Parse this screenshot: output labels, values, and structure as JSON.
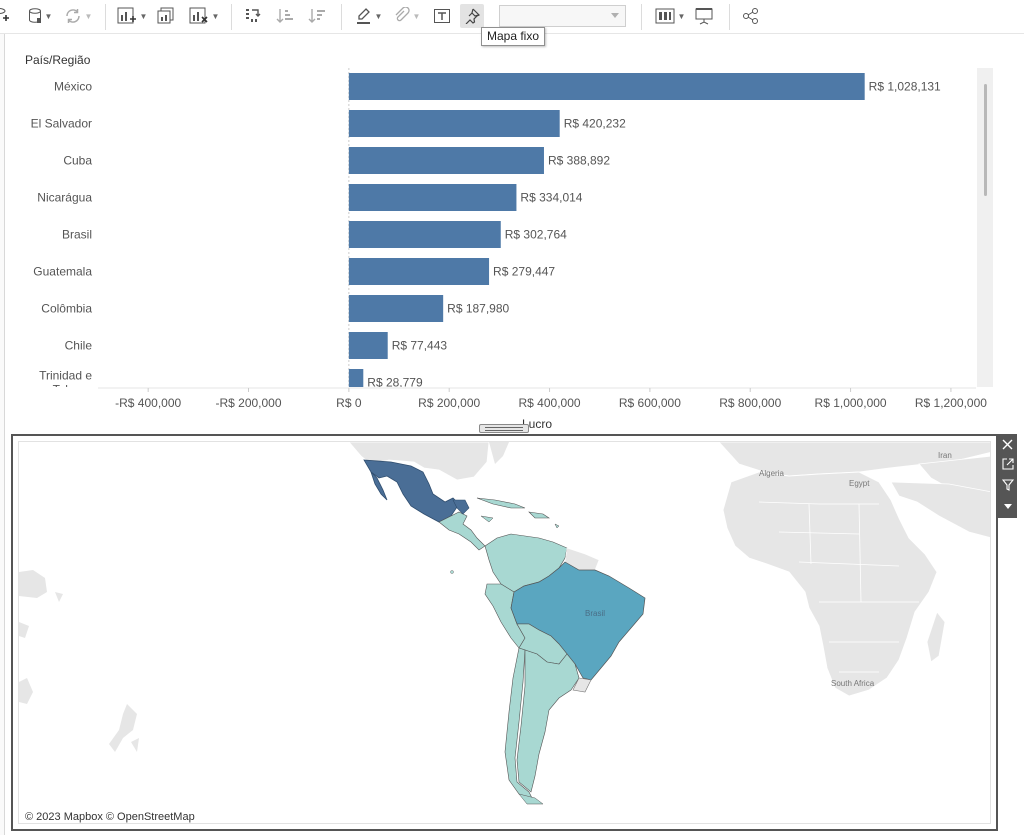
{
  "tooltip": {
    "text": "Mapa fixo"
  },
  "toolbar": {
    "icons": [
      "new-datasource-icon",
      "datasource-icon",
      "refresh-icon",
      "new-worksheet-icon",
      "duplicate-sheet-icon",
      "clear-sheet-icon",
      "swap-axes-icon",
      "sort-ascending-icon",
      "sort-descending-icon",
      "highlight-icon",
      "annotate-icon",
      "show-labels-icon",
      "fix-axes-icon",
      "size-dropdown",
      "show-me-icon",
      "presentation-icon",
      "share-icon"
    ]
  },
  "chart": {
    "dimension_header": "País/Região",
    "axis_title": "Lucro",
    "bar_color": "#4e79a7"
  },
  "chart_data": {
    "type": "bar",
    "orientation": "horizontal",
    "categories": [
      "México",
      "El Salvador",
      "Cuba",
      "Nicarágua",
      "Brasil",
      "Guatemala",
      "Colômbia",
      "Chile",
      "Trinidad e Tobago"
    ],
    "values": [
      1028131,
      420232,
      388892,
      334014,
      302764,
      279447,
      187980,
      77443,
      28779
    ],
    "value_labels": [
      "R$ 1,028,131",
      "R$ 420,232",
      "R$ 388,892",
      "R$ 334,014",
      "R$ 302,764",
      "R$ 279,447",
      "R$ 187,980",
      "R$ 77,443",
      "R$ 28,779"
    ],
    "xlabel": "Lucro",
    "ylabel": "País/Região",
    "xlim": [
      -500000,
      1250000
    ],
    "x_ticks": [
      -400000,
      -200000,
      0,
      200000,
      400000,
      600000,
      800000,
      1000000,
      1200000
    ],
    "x_tick_labels": [
      "-R$ 400,000",
      "-R$ 200,000",
      "R$ 0",
      "R$ 200,000",
      "R$ 400,000",
      "R$ 600,000",
      "R$ 800,000",
      "R$ 1,000,000",
      "R$ 1,200,000"
    ],
    "grid": false
  },
  "map": {
    "attribution": "© 2023 Mapbox © OpenStreetMap",
    "labels": [
      "Algeria",
      "Egypt",
      "Iran",
      "Brasil",
      "South Africa"
    ],
    "colors": {
      "high": "#4a6e96",
      "mid": "#5aa6c0",
      "low": "#a8d8d2",
      "land": "#e6e6e6",
      "water": "#ffffff"
    }
  },
  "map_controls": [
    "close-icon",
    "popout-icon",
    "filter-icon",
    "more-options-icon"
  ]
}
